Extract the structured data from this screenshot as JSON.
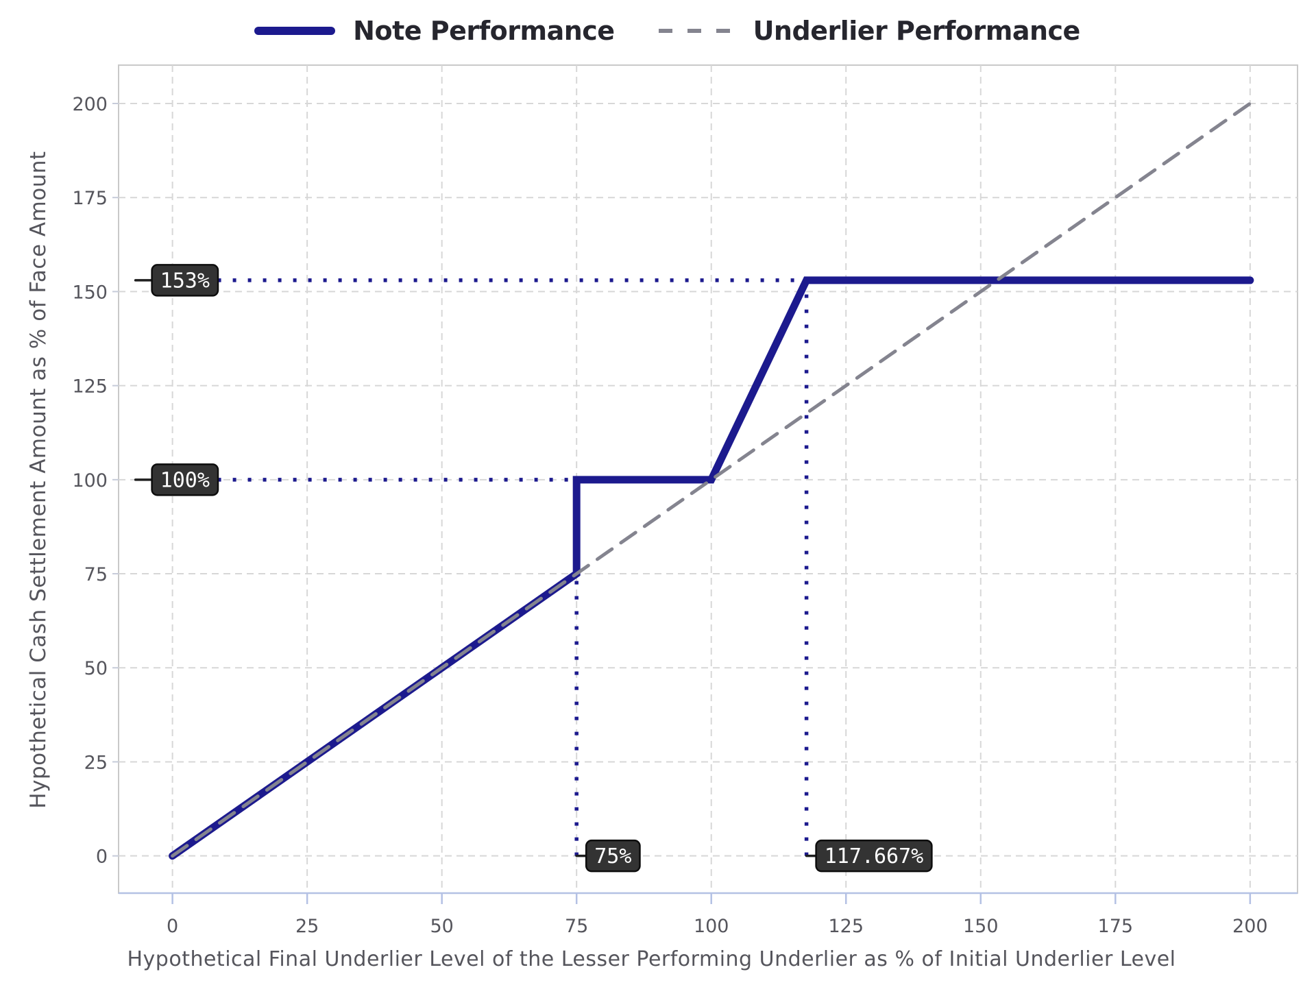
{
  "legend": {
    "items": [
      {
        "label": "Note Performance",
        "swatch": "solid-line-swatch",
        "color": "#1c1a8e"
      },
      {
        "label": "Underlier Performance",
        "swatch": "dashed-line-swatch",
        "color": "#84848f"
      }
    ]
  },
  "axes": {
    "x": {
      "label": "Hypothetical Final Underlier Level of the Lesser Performing Underlier as % of Initial Underlier Level",
      "ticks": [
        0,
        25,
        50,
        75,
        100,
        125,
        150,
        175,
        200
      ]
    },
    "y": {
      "label": "Hypothetical Cash Settlement Amount as % of Face Amount",
      "ticks": [
        0,
        25,
        50,
        75,
        100,
        125,
        150,
        175,
        200
      ]
    }
  },
  "chart_data": {
    "type": "line",
    "title": "",
    "xlabel": "Hypothetical Final Underlier Level of the Lesser Performing Underlier as % of Initial Underlier Level",
    "ylabel": "Hypothetical Cash Settlement Amount as % of Face Amount",
    "xlim": [
      -10,
      208.8
    ],
    "ylim": [
      -9.9,
      210.2
    ],
    "grid": true,
    "legend_position": "top-center",
    "series": [
      {
        "name": "Note Performance",
        "style": "solid",
        "color": "#1c1a8e",
        "width": 11,
        "points": [
          [
            0,
            0
          ],
          [
            75,
            75
          ],
          [
            75,
            100
          ],
          [
            100,
            100
          ],
          [
            117.667,
            153
          ],
          [
            200,
            153
          ]
        ]
      },
      {
        "name": "Underlier Performance",
        "style": "dashed",
        "color": "#84848f",
        "width": 5,
        "points": [
          [
            0,
            0
          ],
          [
            200,
            200
          ]
        ]
      }
    ],
    "guide_lines": [
      {
        "type": "h",
        "y": 153,
        "x1": 0,
        "x2": 117.667
      },
      {
        "type": "h",
        "y": 100,
        "x1": 0,
        "x2": 75
      },
      {
        "type": "v",
        "x": 75,
        "y1": 0,
        "y2": 100
      },
      {
        "type": "v",
        "x": 117.667,
        "y1": 0,
        "y2": 153
      }
    ],
    "annotations": [
      {
        "text": "153%",
        "x": 0,
        "y": 153,
        "placement": "left"
      },
      {
        "text": "100%",
        "x": 0,
        "y": 100,
        "placement": "left"
      },
      {
        "text": "75%",
        "x": 75,
        "y": 0,
        "placement": "bottom"
      },
      {
        "text": "117.667%",
        "x": 117.667,
        "y": 0,
        "placement": "bottom"
      }
    ]
  },
  "colors": {
    "note_line": "#1c1a8e",
    "underlier_line": "#84848f",
    "guide_dotted": "#1c1a8e",
    "grid_line": "#d7d7d7",
    "plot_border": "#c9c9c9",
    "bottom_spine": "#b4c1e4",
    "left_tick": "#c6cbd9",
    "tick_label": "#55555c",
    "axis_label": "#55555c",
    "legend_text": "#26262e",
    "annotation_box_fill": "#333333",
    "annotation_box_border": "#0d0d0d",
    "annotation_text": "#ffffff",
    "annotation_leader": "#1f1f1f"
  }
}
